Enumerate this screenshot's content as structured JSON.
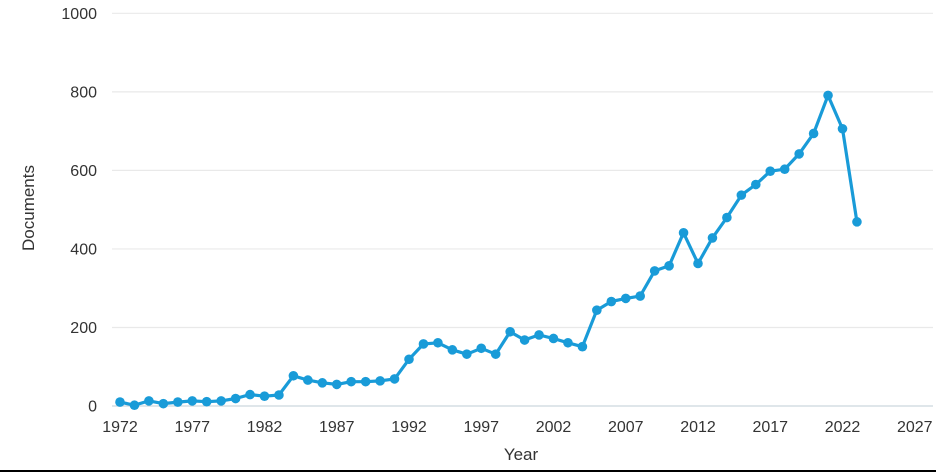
{
  "chart_data": {
    "type": "line",
    "title": "",
    "xlabel": "Year",
    "ylabel": "Documents",
    "x_ticks": [
      1972,
      1977,
      1982,
      1987,
      1992,
      1997,
      2002,
      2007,
      2012,
      2017,
      2022,
      2027
    ],
    "y_ticks": [
      0,
      200,
      400,
      600,
      800,
      1000
    ],
    "xlim": [
      1972,
      2027
    ],
    "ylim": [
      0,
      1000
    ],
    "grid": true,
    "legend_position": "none",
    "line_color": "#199bd8",
    "series": [
      {
        "name": "Documents",
        "x": [
          1972,
          1973,
          1974,
          1975,
          1976,
          1977,
          1978,
          1979,
          1980,
          1981,
          1982,
          1983,
          1984,
          1985,
          1986,
          1987,
          1988,
          1989,
          1990,
          1991,
          1992,
          1993,
          1994,
          1995,
          1996,
          1997,
          1998,
          1999,
          2000,
          2001,
          2002,
          2003,
          2004,
          2005,
          2006,
          2007,
          2008,
          2009,
          2010,
          2011,
          2012,
          2013,
          2014,
          2015,
          2016,
          2017,
          2018,
          2019,
          2020,
          2021,
          2022,
          2023
        ],
        "y": [
          10,
          2,
          13,
          6,
          10,
          13,
          11,
          13,
          19,
          29,
          25,
          28,
          77,
          66,
          59,
          55,
          62,
          62,
          64,
          69,
          119,
          158,
          161,
          143,
          132,
          147,
          132,
          189,
          168,
          181,
          172,
          161,
          151,
          244,
          266,
          274,
          280,
          344,
          357,
          441,
          363,
          428,
          480,
          537,
          564,
          598,
          603,
          642,
          694,
          791,
          706,
          469
        ]
      }
    ]
  },
  "colors": {
    "background": "#ffffff",
    "gridline": "#e9e9e9",
    "zero_axis_line": "#ccd6dd",
    "text": "#333333",
    "bottom_border": "#000000"
  }
}
